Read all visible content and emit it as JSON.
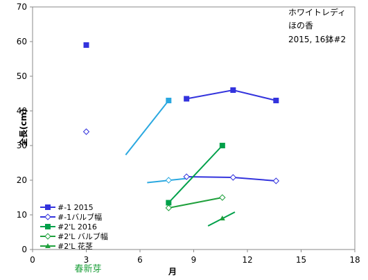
{
  "chart_data": {
    "type": "line",
    "xlabel": "月",
    "ylabel": "全長(cm)",
    "xlim": [
      0,
      18
    ],
    "ylim": [
      0,
      70
    ],
    "xticks": [
      "0",
      "3",
      "6",
      "9",
      "12",
      "15",
      "18"
    ],
    "yticks": [
      "0",
      "10",
      "20",
      "30",
      "40",
      "50",
      "60",
      "70"
    ],
    "grid": false,
    "legend_position": "bottom-left",
    "annotations": [
      "ホワイトレディ",
      "ほの香",
      "2015, 16鉢#2"
    ],
    "x_note": "春新芽",
    "series": [
      {
        "name": "#-1 2015",
        "color": "#3333dd",
        "marker": "square-filled",
        "x": [
          3.0,
          8.6,
          11.2,
          13.6
        ],
        "y": [
          59,
          43.5,
          46,
          43
        ],
        "connect_from": 1
      },
      {
        "name": "#-1バルブ幅",
        "color": "#3333dd",
        "marker": "diamond-open",
        "x": [
          3.0,
          8.6,
          11.2,
          13.6
        ],
        "y": [
          34,
          21,
          20.8,
          19.8
        ],
        "connect_from": 1
      },
      {
        "name": "#2'L 2016",
        "color": "#00a04a",
        "marker": "square-filled",
        "x": [
          7.6,
          10.6
        ],
        "y": [
          13.5,
          30
        ],
        "connect_from": 0
      },
      {
        "name": "#2'L バルブ幅",
        "color": "#1fa03c",
        "marker": "diamond-open",
        "x": [
          7.6,
          10.6
        ],
        "y": [
          12,
          15
        ],
        "connect_from": 0
      },
      {
        "name": "#2'L 花茎",
        "color": "#1fa03c",
        "marker": "triangle-filled",
        "x": [
          10.6
        ],
        "y": [
          9
        ],
        "connect_from": 0
      }
    ],
    "extra_points": [
      {
        "x": 7.6,
        "y": 43,
        "color": "#2aa8e0",
        "marker": "square-filled"
      },
      {
        "x": 7.6,
        "y": 20,
        "color": "#2aa8e0",
        "marker": "diamond-open"
      }
    ],
    "trend_lines": [
      {
        "x": [
          5.2,
          7.6
        ],
        "y": [
          27.3,
          43
        ],
        "color": "#2aa8e0"
      },
      {
        "x": [
          6.4,
          8.6
        ],
        "y": [
          19.3,
          20.5
        ],
        "color": "#2aa8e0"
      },
      {
        "x": [
          9.8,
          11.3
        ],
        "y": [
          6.8,
          10.8
        ],
        "color": "#00a04a"
      }
    ]
  }
}
